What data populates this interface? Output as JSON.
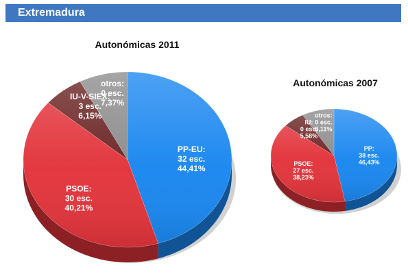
{
  "header": {
    "title": "Extremadura"
  },
  "colors": {
    "header_bg": "#3f78c0",
    "pp": "#1a87f0",
    "psoe": "#e3343c",
    "iu": "#6b2424",
    "otros": "#8c8c8c"
  },
  "chart_data": [
    {
      "type": "pie",
      "title": "Autonómicas 2011",
      "slices": [
        {
          "party": "PP-EU:",
          "seats": "32 esc.",
          "percent_label": "44,41%",
          "value": 44.41,
          "color": "#1a87f0"
        },
        {
          "party": "PSOE:",
          "seats": "30 esc.",
          "percent_label": "40,21%",
          "value": 40.21,
          "color": "#e3343c"
        },
        {
          "party": "IU-V-SIEX:",
          "seats": "3 esc.",
          "percent_label": "6,15%",
          "value": 6.15,
          "color": "#6b2424"
        },
        {
          "party": "otros:",
          "seats": "0 esc.",
          "percent_label": "7,37%",
          "value": 7.37,
          "color": "#8c8c8c"
        }
      ]
    },
    {
      "type": "pie",
      "title": "Autonómicas 2007",
      "slices": [
        {
          "party": "PP:",
          "seats": "38 esc.",
          "percent_label": "46,43%",
          "value": 46.43,
          "color": "#1a87f0"
        },
        {
          "party": "PSOE:",
          "seats": "27 esc.",
          "percent_label": "38,23%",
          "value": 38.23,
          "color": "#e3343c"
        },
        {
          "party": "IU:",
          "seats": "0 esc.",
          "percent_label": "5,58%",
          "value": 5.58,
          "color": "#6b2424"
        },
        {
          "party": "otros:",
          "seats": "0 esc.",
          "percent_label": "8,11%",
          "value": 8.11,
          "color": "#8c8c8c"
        }
      ]
    }
  ]
}
